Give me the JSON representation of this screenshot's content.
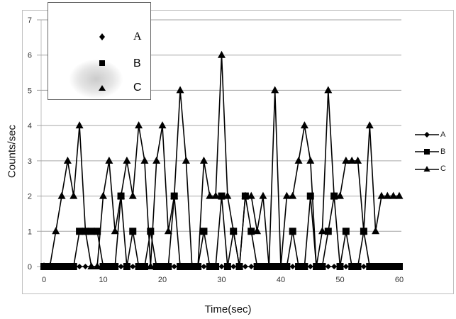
{
  "chart_data": {
    "type": "line",
    "title": "",
    "xlabel": "Time(sec)",
    "ylabel": "Counts/sec",
    "xlim": [
      0,
      60
    ],
    "ylim": [
      0,
      7
    ],
    "xticks": [
      0,
      10,
      20,
      30,
      40,
      50,
      60
    ],
    "yticks": [
      0,
      1,
      2,
      3,
      4,
      5,
      6,
      7
    ],
    "grid": "horizontal",
    "legend_position": "right",
    "x": [
      0,
      1,
      2,
      3,
      4,
      5,
      6,
      7,
      8,
      9,
      10,
      11,
      12,
      13,
      14,
      15,
      16,
      17,
      18,
      19,
      20,
      21,
      22,
      23,
      24,
      25,
      26,
      27,
      28,
      29,
      30,
      31,
      32,
      33,
      34,
      35,
      36,
      37,
      38,
      39,
      40,
      41,
      42,
      43,
      44,
      45,
      46,
      47,
      48,
      49,
      50,
      51,
      52,
      53,
      54,
      55,
      56,
      57,
      58,
      59,
      60
    ],
    "series": [
      {
        "name": "A",
        "marker": "diamond",
        "values": [
          0,
          0,
          0,
          0,
          0,
          0,
          0,
          0,
          0,
          0,
          0,
          0,
          0,
          0,
          0,
          0,
          0,
          0,
          0,
          0,
          0,
          0,
          0,
          0,
          0,
          0,
          0,
          0,
          0,
          0,
          0,
          0,
          0,
          0,
          0,
          0,
          0,
          0,
          0,
          0,
          0,
          0,
          0,
          0,
          0,
          0,
          0,
          0,
          0,
          0,
          0,
          0,
          0,
          0,
          0,
          0,
          0,
          0,
          0,
          0,
          0
        ]
      },
      {
        "name": "B",
        "marker": "square",
        "values": [
          0,
          0,
          0,
          0,
          0,
          0,
          1,
          1,
          1,
          1,
          0,
          0,
          0,
          2,
          0,
          1,
          0,
          0,
          1,
          0,
          0,
          0,
          2,
          0,
          0,
          0,
          0,
          1,
          0,
          0,
          2,
          0,
          1,
          0,
          2,
          1,
          0,
          0,
          0,
          0,
          0,
          0,
          1,
          0,
          0,
          2,
          0,
          0,
          1,
          2,
          0,
          1,
          0,
          0,
          1,
          0,
          0,
          0,
          0,
          0,
          0
        ]
      },
      {
        "name": "C",
        "marker": "triangle",
        "values": [
          0,
          0,
          1,
          2,
          3,
          2,
          4,
          1,
          0,
          0,
          2,
          3,
          1,
          2,
          3,
          2,
          4,
          3,
          0,
          3,
          4,
          1,
          2,
          5,
          3,
          0,
          0,
          3,
          2,
          2,
          6,
          2,
          1,
          0,
          2,
          2,
          1,
          2,
          0,
          5,
          0,
          2,
          2,
          3,
          4,
          3,
          0,
          1,
          5,
          2,
          2,
          3,
          3,
          3,
          1,
          4,
          1,
          2,
          2,
          2,
          2
        ]
      }
    ],
    "inset": {
      "entries": [
        {
          "label": "A",
          "marker": "diamond"
        },
        {
          "label": "B",
          "marker": "square"
        },
        {
          "label": "C",
          "marker": "triangle"
        }
      ]
    }
  },
  "labels": {
    "xlabel": "Time(sec)",
    "ylabel": "Counts/sec",
    "legend": [
      "A",
      "B",
      "C"
    ],
    "inset": [
      "A",
      "B",
      "C"
    ]
  },
  "colors": {
    "series": "#000000",
    "grid": "#a6a6a6",
    "frame": "#bfbfbf",
    "inset_border": "#666666"
  }
}
